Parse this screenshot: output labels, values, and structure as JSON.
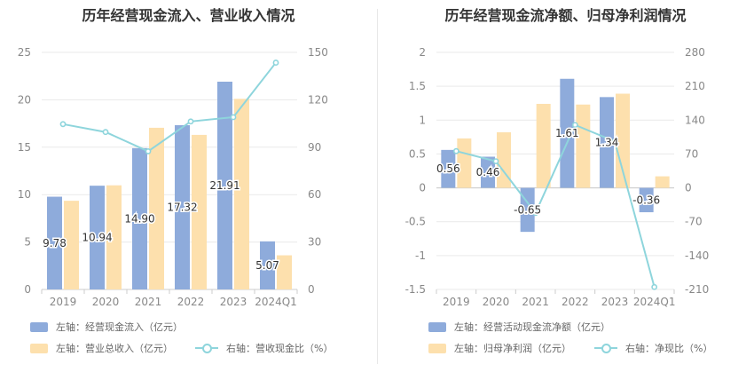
{
  "colors": {
    "bar_primary": "#8eabdb",
    "bar_secondary": "#fde0ad",
    "line": "#8ed5dc",
    "grid": "#e9e9e9",
    "axis_text": "#888888",
    "title_text": "#333333"
  },
  "chart_data": [
    {
      "type": "bar",
      "title": "历年经营现金流入、营业收入情况",
      "categories": [
        "2019",
        "2020",
        "2021",
        "2022",
        "2023",
        "2024Q1"
      ],
      "y_left": {
        "min": 0,
        "max": 25,
        "ticks": [
          "0",
          "5",
          "10",
          "15",
          "20",
          "25"
        ]
      },
      "y_right": {
        "min": 0,
        "max": 150,
        "ticks": [
          "0",
          "30",
          "60",
          "90",
          "120",
          "150"
        ]
      },
      "series": [
        {
          "name": "左轴：经营现金流入（亿元）",
          "type": "bar",
          "axis": "left",
          "values": [
            9.78,
            10.94,
            14.9,
            17.32,
            21.91,
            5.07
          ],
          "labels": [
            "9.78",
            "10.94",
            "14.90",
            "17.32",
            "21.91",
            "5.07"
          ]
        },
        {
          "name": "左轴：营业总收入（亿元）",
          "type": "bar",
          "axis": "left",
          "values": [
            9.35,
            10.98,
            17.05,
            16.3,
            20.1,
            3.6
          ]
        },
        {
          "name": "右轴：营收现金比（%）",
          "type": "line",
          "axis": "right",
          "values": [
            104.6,
            99.6,
            87.4,
            106.3,
            109.0,
            143.5
          ]
        }
      ],
      "legend": [
        "左轴：经营现金流入（亿元）",
        "左轴：营业总收入（亿元）",
        "右轴：营收现金比（%）"
      ]
    },
    {
      "type": "bar",
      "title": "历年经营现金流净额、归母净利润情况",
      "categories": [
        "2019",
        "2020",
        "2021",
        "2022",
        "2023",
        "2024Q1"
      ],
      "y_left": {
        "min": -1.5,
        "max": 2,
        "ticks": [
          "-1.5",
          "-1",
          "-0.5",
          "0",
          "0.5",
          "1",
          "1.5",
          "2"
        ]
      },
      "y_right": {
        "min": -210,
        "max": 280,
        "ticks": [
          "-210",
          "-140",
          "-70",
          "0",
          "70",
          "140",
          "210",
          "280"
        ]
      },
      "series": [
        {
          "name": "左轴：经营活动现金流净额（亿元）",
          "type": "bar",
          "axis": "left",
          "values": [
            0.56,
            0.46,
            -0.65,
            1.61,
            1.34,
            -0.36
          ],
          "labels": [
            "0.56",
            "0.46",
            "-0.65",
            "1.61",
            "1.34",
            "-0.36"
          ]
        },
        {
          "name": "左轴：归母净利润（亿元）",
          "type": "bar",
          "axis": "left",
          "values": [
            0.73,
            0.82,
            1.24,
            1.23,
            1.39,
            0.17
          ]
        },
        {
          "name": "右轴：净现比（%）",
          "type": "line",
          "axis": "right",
          "values": [
            76,
            55,
            -52,
            130,
            96,
            -205
          ]
        }
      ],
      "legend": [
        "左轴：经营活动现金流净额（亿元）",
        "左轴：归母净利润（亿元）",
        "右轴：净现比（%）"
      ]
    }
  ]
}
